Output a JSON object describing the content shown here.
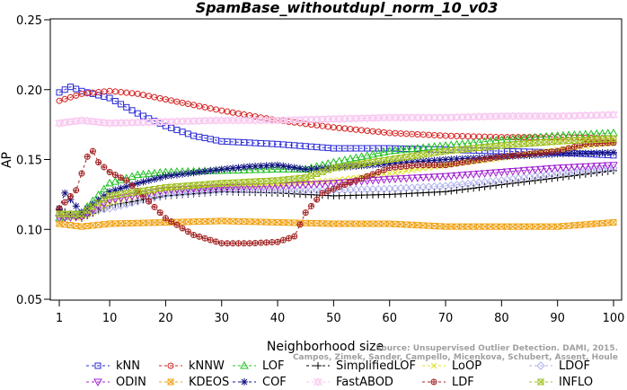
{
  "chart_data": {
    "type": "line",
    "title": "SpamBase_withoutdupl_norm_10_v03",
    "xlabel": "Neighborhood size",
    "ylabel": "AP",
    "xlim": [
      1,
      100
    ],
    "ylim": [
      0.05,
      0.25
    ],
    "xticks": [
      1,
      10,
      20,
      30,
      40,
      50,
      60,
      70,
      80,
      90,
      100
    ],
    "yticks": [
      0.05,
      0.1,
      0.15,
      0.2,
      0.25
    ],
    "ytick_labels": [
      "0.05",
      "0.10",
      "0.15",
      "0.20",
      "0.25"
    ],
    "grid": false,
    "legend_position": "bottom",
    "credit": [
      "Source: Unsupervised Outlier Detection. DAMI, 2015.",
      "Campos, Zimek, Sander, Campello, Micenkova, Schubert, Assent, Houle"
    ],
    "series": [
      {
        "name": "kNN",
        "color": "#2a2ad6",
        "marker": "square",
        "points": [
          [
            1,
            0.198
          ],
          [
            3,
            0.202
          ],
          [
            5,
            0.199
          ],
          [
            10,
            0.194
          ],
          [
            15,
            0.183
          ],
          [
            20,
            0.174
          ],
          [
            25,
            0.167
          ],
          [
            30,
            0.163
          ],
          [
            40,
            0.161
          ],
          [
            50,
            0.158
          ],
          [
            60,
            0.158
          ],
          [
            70,
            0.157
          ],
          [
            80,
            0.156
          ],
          [
            90,
            0.155
          ],
          [
            100,
            0.153
          ]
        ]
      },
      {
        "name": "kNNW",
        "color": "#d62020",
        "marker": "circle",
        "points": [
          [
            1,
            0.192
          ],
          [
            5,
            0.197
          ],
          [
            10,
            0.199
          ],
          [
            15,
            0.197
          ],
          [
            20,
            0.193
          ],
          [
            30,
            0.185
          ],
          [
            40,
            0.178
          ],
          [
            50,
            0.173
          ],
          [
            60,
            0.169
          ],
          [
            70,
            0.167
          ],
          [
            80,
            0.166
          ],
          [
            90,
            0.166
          ],
          [
            100,
            0.165
          ]
        ]
      },
      {
        "name": "LOF",
        "color": "#20c020",
        "marker": "triangle-up",
        "points": [
          [
            1,
            0.108
          ],
          [
            5,
            0.112
          ],
          [
            10,
            0.133
          ],
          [
            15,
            0.139
          ],
          [
            20,
            0.141
          ],
          [
            30,
            0.142
          ],
          [
            40,
            0.143
          ],
          [
            45,
            0.143
          ],
          [
            50,
            0.148
          ],
          [
            60,
            0.156
          ],
          [
            70,
            0.16
          ],
          [
            80,
            0.164
          ],
          [
            90,
            0.167
          ],
          [
            100,
            0.169
          ]
        ]
      },
      {
        "name": "SimplifiedLOF",
        "color": "#000000",
        "marker": "plus",
        "points": [
          [
            1,
            0.114
          ],
          [
            5,
            0.108
          ],
          [
            10,
            0.117
          ],
          [
            20,
            0.124
          ],
          [
            30,
            0.127
          ],
          [
            40,
            0.126
          ],
          [
            50,
            0.124
          ],
          [
            60,
            0.125
          ],
          [
            70,
            0.127
          ],
          [
            80,
            0.132
          ],
          [
            90,
            0.137
          ],
          [
            100,
            0.142
          ]
        ]
      },
      {
        "name": "LoOP",
        "color": "#e0e020",
        "marker": "x",
        "points": [
          [
            1,
            0.11
          ],
          [
            5,
            0.108
          ],
          [
            10,
            0.118
          ],
          [
            20,
            0.128
          ],
          [
            30,
            0.131
          ],
          [
            40,
            0.132
          ],
          [
            50,
            0.135
          ],
          [
            60,
            0.14
          ],
          [
            70,
            0.146
          ],
          [
            80,
            0.151
          ],
          [
            90,
            0.157
          ],
          [
            100,
            0.162
          ]
        ]
      },
      {
        "name": "LDOF",
        "color": "#b0b0ee",
        "marker": "diamond",
        "points": [
          [
            1,
            0.11
          ],
          [
            10,
            0.115
          ],
          [
            20,
            0.125
          ],
          [
            30,
            0.128
          ],
          [
            40,
            0.128
          ],
          [
            50,
            0.128
          ],
          [
            60,
            0.129
          ],
          [
            70,
            0.131
          ],
          [
            80,
            0.135
          ],
          [
            90,
            0.14
          ],
          [
            100,
            0.144
          ]
        ]
      },
      {
        "name": "ODIN",
        "color": "#a020d0",
        "marker": "triangle-down",
        "points": [
          [
            1,
            0.108
          ],
          [
            5,
            0.109
          ],
          [
            10,
            0.121
          ],
          [
            20,
            0.128
          ],
          [
            30,
            0.13
          ],
          [
            40,
            0.131
          ],
          [
            50,
            0.133
          ],
          [
            60,
            0.136
          ],
          [
            70,
            0.138
          ],
          [
            80,
            0.141
          ],
          [
            90,
            0.144
          ],
          [
            100,
            0.146
          ]
        ]
      },
      {
        "name": "KDEOS",
        "color": "#f0a010",
        "marker": "square-x",
        "points": [
          [
            1,
            0.104
          ],
          [
            5,
            0.102
          ],
          [
            10,
            0.104
          ],
          [
            20,
            0.105
          ],
          [
            30,
            0.106
          ],
          [
            40,
            0.105
          ],
          [
            50,
            0.104
          ],
          [
            60,
            0.104
          ],
          [
            70,
            0.102
          ],
          [
            80,
            0.102
          ],
          [
            90,
            0.102
          ],
          [
            100,
            0.105
          ]
        ]
      },
      {
        "name": "COF",
        "color": "#101080",
        "marker": "asterisk",
        "points": [
          [
            1,
            0.115
          ],
          [
            2,
            0.126
          ],
          [
            5,
            0.112
          ],
          [
            10,
            0.127
          ],
          [
            15,
            0.133
          ],
          [
            20,
            0.138
          ],
          [
            30,
            0.143
          ],
          [
            35,
            0.145
          ],
          [
            40,
            0.146
          ],
          [
            45,
            0.143
          ],
          [
            50,
            0.144
          ],
          [
            60,
            0.147
          ],
          [
            70,
            0.15
          ],
          [
            80,
            0.152
          ],
          [
            90,
            0.154
          ],
          [
            100,
            0.155
          ]
        ]
      },
      {
        "name": "FastABOD",
        "color": "#f8c8f0",
        "marker": "triangle-star",
        "points": [
          [
            1,
            0.176
          ],
          [
            5,
            0.178
          ],
          [
            10,
            0.176
          ],
          [
            20,
            0.177
          ],
          [
            30,
            0.178
          ],
          [
            40,
            0.178
          ],
          [
            50,
            0.179
          ],
          [
            60,
            0.18
          ],
          [
            70,
            0.18
          ],
          [
            80,
            0.181
          ],
          [
            90,
            0.181
          ],
          [
            100,
            0.182
          ]
        ]
      },
      {
        "name": "LDF",
        "color": "#a02020",
        "marker": "circle-plus",
        "points": [
          [
            1,
            0.115
          ],
          [
            4,
            0.128
          ],
          [
            6,
            0.152
          ],
          [
            7,
            0.156
          ],
          [
            8,
            0.148
          ],
          [
            10,
            0.141
          ],
          [
            13,
            0.135
          ],
          [
            17,
            0.12
          ],
          [
            20,
            0.108
          ],
          [
            25,
            0.096
          ],
          [
            30,
            0.09
          ],
          [
            35,
            0.09
          ],
          [
            40,
            0.091
          ],
          [
            43,
            0.095
          ],
          [
            45,
            0.112
          ],
          [
            48,
            0.126
          ],
          [
            52,
            0.132
          ],
          [
            56,
            0.138
          ],
          [
            60,
            0.144
          ],
          [
            65,
            0.146
          ],
          [
            70,
            0.146
          ],
          [
            75,
            0.149
          ],
          [
            80,
            0.152
          ],
          [
            85,
            0.154
          ],
          [
            90,
            0.156
          ],
          [
            95,
            0.161
          ],
          [
            100,
            0.162
          ]
        ]
      },
      {
        "name": "INFLO",
        "color": "#a0c020",
        "marker": "hourglass",
        "points": [
          [
            1,
            0.111
          ],
          [
            5,
            0.111
          ],
          [
            10,
            0.124
          ],
          [
            20,
            0.13
          ],
          [
            30,
            0.133
          ],
          [
            40,
            0.135
          ],
          [
            45,
            0.137
          ],
          [
            50,
            0.144
          ],
          [
            60,
            0.15
          ],
          [
            70,
            0.156
          ],
          [
            80,
            0.16
          ],
          [
            90,
            0.163
          ],
          [
            100,
            0.165
          ]
        ]
      }
    ]
  }
}
